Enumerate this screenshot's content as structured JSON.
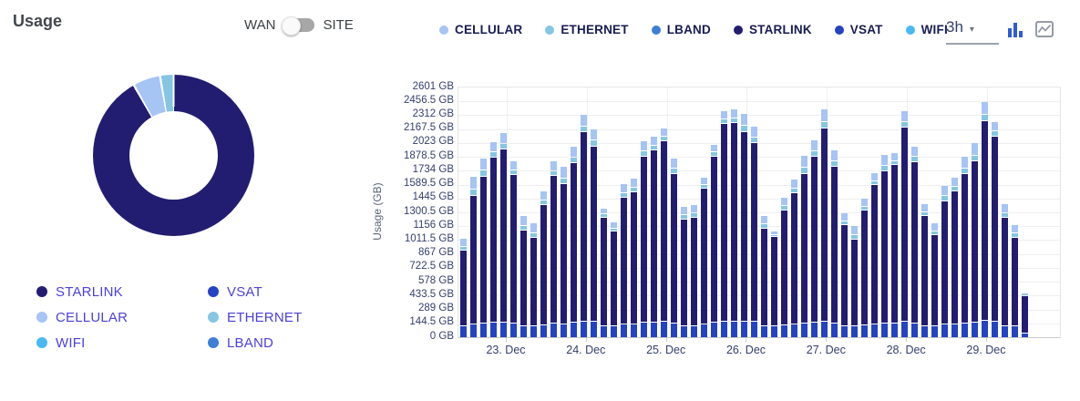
{
  "header": {
    "title": "Usage",
    "toggle": {
      "left_label": "WAN",
      "right_label": "SITE",
      "state": "WAN"
    }
  },
  "toolbar": {
    "time_range": "3h",
    "caret": "▾",
    "icons": [
      "bar-chart-icon",
      "line-chart-icon"
    ]
  },
  "colors": {
    "CELLULAR": "#a6c4f4",
    "ETHERNET": "#85c6e2",
    "LBAND": "#3d7ed8",
    "STARLINK": "#221d71",
    "VSAT": "#2443c2",
    "WIFI": "#49b9f2"
  },
  "top_legend": [
    "CELLULAR",
    "ETHERNET",
    "LBAND",
    "STARLINK",
    "VSAT",
    "WIFI"
  ],
  "donut_legend": [
    "STARLINK",
    "VSAT",
    "CELLULAR",
    "ETHERNET",
    "WIFI",
    "LBAND"
  ],
  "chart_data": [
    {
      "type": "pie",
      "donut": true,
      "slices": [
        {
          "label": "STARLINK",
          "percent": 91.8
        },
        {
          "label": "CELLULAR",
          "percent": 5.5
        },
        {
          "label": "ETHERNET",
          "percent": 2.7
        },
        {
          "label": "VSAT",
          "percent": 0
        },
        {
          "label": "WIFI",
          "percent": 0
        },
        {
          "label": "LBAND",
          "percent": 0
        }
      ]
    },
    {
      "type": "bar",
      "stacked": true,
      "interval": "3h",
      "bars_per_day": 8,
      "ylabel": "Usage (GB)",
      "ylim": [
        0,
        2601
      ],
      "ytick_step": 144.5,
      "yticks": [
        "0 GB",
        "144.5 GB",
        "289 GB",
        "433.5 GB",
        "578 GB",
        "722.5 GB",
        "867 GB",
        "1011.5 GB",
        "1156 GB",
        "1300.5 GB",
        "1445 GB",
        "1589.5 GB",
        "1734 GB",
        "1878.5 GB",
        "2023 GB",
        "2167.5 GB",
        "2312 GB",
        "2456.5 GB",
        "2601 GB"
      ],
      "xticks": [
        "23. Dec",
        "24. Dec",
        "25. Dec",
        "26. Dec",
        "27. Dec",
        "28. Dec",
        "29. Dec"
      ],
      "stack_order": [
        "VSAT",
        "STARLINK",
        "ETHERNET",
        "CELLULAR"
      ],
      "values": [
        [
          110,
          794,
          39,
          78
        ],
        [
          130,
          1344,
          66,
          134
        ],
        [
          140,
          1534,
          62,
          125
        ],
        [
          150,
          1721,
          55,
          110
        ],
        [
          155,
          1804,
          55,
          110
        ],
        [
          140,
          1550,
          46,
          94
        ],
        [
          115,
          995,
          49,
          100
        ],
        [
          110,
          921,
          52,
          106
        ],
        [
          125,
          1254,
          47,
          96
        ],
        [
          140,
          1541,
          49,
          100
        ],
        [
          135,
          1460,
          60,
          121
        ],
        [
          150,
          1667,
          55,
          110
        ],
        [
          160,
          1974,
          60,
          121
        ],
        [
          160,
          1828,
          59,
          119
        ],
        [
          115,
          1131,
          31,
          64
        ],
        [
          110,
          990,
          33,
          66
        ],
        [
          130,
          1319,
          48,
          98
        ],
        [
          130,
          1383,
          45,
          91
        ],
        [
          150,
          1731,
          52,
          106
        ],
        [
          155,
          1795,
          47,
          96
        ],
        [
          160,
          1885,
          44,
          89
        ],
        [
          140,
          1562,
          52,
          107
        ],
        [
          115,
          1112,
          42,
          85
        ],
        [
          115,
          1131,
          42,
          85
        ],
        [
          130,
          1414,
          38,
          76
        ],
        [
          150,
          1731,
          42,
          84
        ],
        [
          165,
          2055,
          45,
          91
        ],
        [
          165,
          2064,
          46,
          94
        ],
        [
          165,
          1975,
          63,
          127
        ],
        [
          160,
          1860,
          58,
          119
        ],
        [
          115,
          1017,
          42,
          85
        ],
        [
          110,
          936,
          18,
          36
        ],
        [
          125,
          1197,
          42,
          85
        ],
        [
          130,
          1370,
          46,
          93
        ],
        [
          140,
          1562,
          63,
          128
        ],
        [
          150,
          1731,
          56,
          114
        ],
        [
          165,
          2013,
          63,
          128
        ],
        [
          145,
          1631,
          57,
          117
        ],
        [
          115,
          1049,
          42,
          85
        ],
        [
          110,
          905,
          47,
          95
        ],
        [
          125,
          1191,
          42,
          85
        ],
        [
          135,
          1451,
          42,
          84
        ],
        [
          140,
          1588,
          57,
          117
        ],
        [
          140,
          1651,
          42,
          85
        ],
        [
          165,
          2023,
          55,
          113
        ],
        [
          145,
          1678,
          54,
          111
        ],
        [
          115,
          1144,
          42,
          85
        ],
        [
          110,
          958,
          38,
          77
        ],
        [
          130,
          1287,
          52,
          107
        ],
        [
          130,
          1392,
          45,
          91
        ],
        [
          140,
          1562,
          59,
          119
        ],
        [
          150,
          1679,
          63,
          128
        ],
        [
          170,
          2081,
          66,
          134
        ],
        [
          160,
          1933,
          49,
          100
        ],
        [
          115,
          1131,
          46,
          94
        ],
        [
          110,
          927,
          42,
          85
        ],
        [
          40,
          388,
          5,
          10
        ]
      ]
    }
  ]
}
